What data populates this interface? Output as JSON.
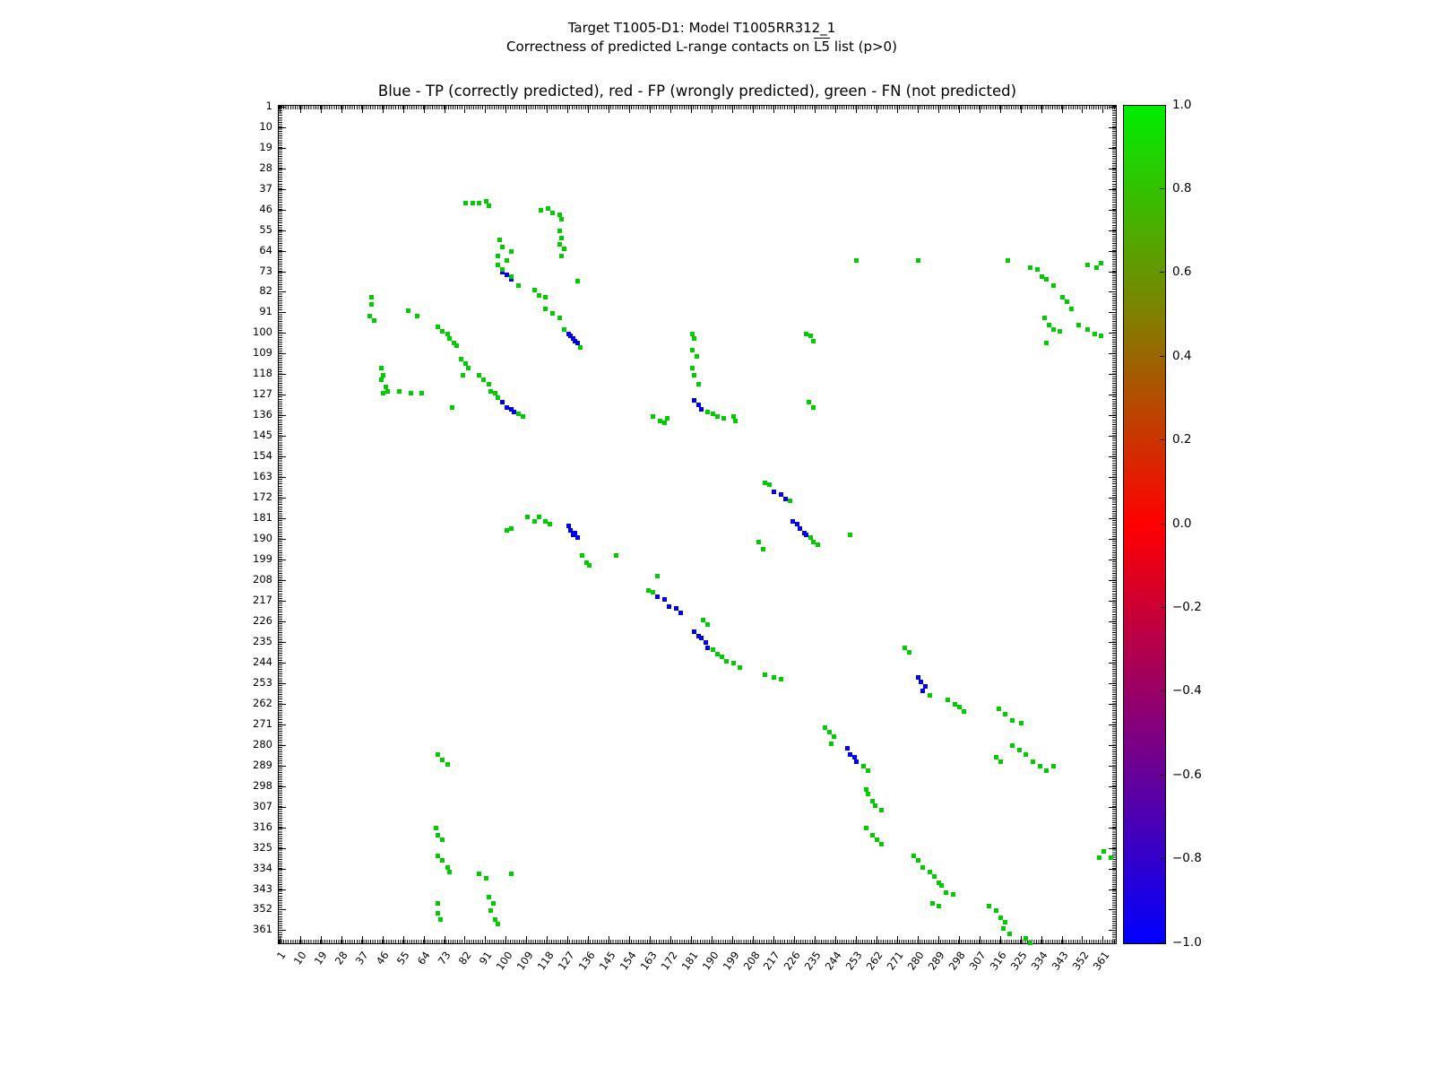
{
  "figure": {
    "suptitle_line1": "Target T1005-D1: Model T1005RR312_1",
    "suptitle_line2_prefix": "Correctness of predicted L-range contacts on ",
    "suptitle_line2_overline": "L5",
    "suptitle_line2_suffix": " list (p>0)",
    "axes_title": "Blue - TP (correctly predicted), red - FP (wrongly predicted), green - FN (not predicted)"
  },
  "chart_data": {
    "type": "scatter",
    "title": "Blue - TP (correctly predicted), red - FP (wrongly predicted), green - FN (not predicted)",
    "suptitle": "Target T1005-D1: Model T1005RR312_1",
    "subtitle": "Correctness of predicted L-range contacts on L5 list (p>0)",
    "xlabel": "",
    "ylabel": "",
    "axis_min": 1,
    "axis_max": 366,
    "y_inverted": true,
    "grid": false,
    "ticks": [
      1,
      10,
      19,
      28,
      37,
      46,
      55,
      64,
      73,
      82,
      91,
      100,
      109,
      118,
      127,
      136,
      145,
      154,
      163,
      172,
      181,
      190,
      199,
      208,
      217,
      226,
      235,
      244,
      253,
      262,
      271,
      280,
      289,
      298,
      307,
      316,
      325,
      334,
      343,
      352,
      361
    ],
    "colorbar": {
      "min": -1.0,
      "max": 1.0,
      "labels": [
        "1.0",
        "0.8",
        "0.6",
        "0.4",
        "0.2",
        "0.0",
        "−0.2",
        "−0.4",
        "−0.6",
        "−0.8",
        "−1.0"
      ],
      "color_top": "#00ee00",
      "color_mid": "#ff0000",
      "color_bottom": "#0000ff",
      "colormap": "blue-red-green (brg)"
    },
    "series": [
      {
        "name": "TP (correctly predicted)",
        "color": "#0000ee",
        "points": [
          [
            98,
            73
          ],
          [
            100,
            74
          ],
          [
            102,
            76
          ],
          [
            127,
            100
          ],
          [
            128,
            101
          ],
          [
            129,
            102
          ],
          [
            130,
            103
          ],
          [
            131,
            104
          ],
          [
            98,
            130
          ],
          [
            100,
            132
          ],
          [
            102,
            133
          ],
          [
            103,
            134
          ],
          [
            182,
            129
          ],
          [
            184,
            131
          ],
          [
            185,
            133
          ],
          [
            217,
            169
          ],
          [
            220,
            170
          ],
          [
            222,
            172
          ],
          [
            225,
            182
          ],
          [
            227,
            183
          ],
          [
            228,
            185
          ],
          [
            230,
            187
          ],
          [
            231,
            188
          ],
          [
            127,
            184
          ],
          [
            128,
            186
          ],
          [
            129,
            188
          ],
          [
            130,
            187
          ],
          [
            131,
            189
          ],
          [
            166,
            215
          ],
          [
            169,
            216
          ],
          [
            171,
            219
          ],
          [
            174,
            220
          ],
          [
            176,
            222
          ],
          [
            182,
            230
          ],
          [
            184,
            232
          ],
          [
            185,
            233
          ],
          [
            187,
            235
          ],
          [
            188,
            237
          ],
          [
            280,
            250
          ],
          [
            281,
            252
          ],
          [
            282,
            256
          ],
          [
            283,
            254
          ],
          [
            249,
            281
          ],
          [
            250,
            284
          ],
          [
            252,
            285
          ],
          [
            253,
            287
          ]
        ]
      },
      {
        "name": "FP (wrongly predicted)",
        "color": "#ee0000",
        "points": []
      },
      {
        "name": "FN (not predicted)",
        "color": "#00cc00",
        "points": [
          [
            82,
            43
          ],
          [
            85,
            43
          ],
          [
            88,
            43
          ],
          [
            91,
            42
          ],
          [
            92,
            44
          ],
          [
            115,
            46
          ],
          [
            118,
            45
          ],
          [
            120,
            47
          ],
          [
            123,
            48
          ],
          [
            124,
            50
          ],
          [
            123,
            55
          ],
          [
            124,
            58
          ],
          [
            123,
            61
          ],
          [
            125,
            63
          ],
          [
            124,
            66
          ],
          [
            97,
            59
          ],
          [
            98,
            62
          ],
          [
            102,
            64
          ],
          [
            96,
            66
          ],
          [
            100,
            68
          ],
          [
            131,
            77
          ],
          [
            96,
            70
          ],
          [
            98,
            72
          ],
          [
            102,
            75
          ],
          [
            105,
            79
          ],
          [
            112,
            81
          ],
          [
            114,
            83
          ],
          [
            117,
            84
          ],
          [
            41,
            84
          ],
          [
            41,
            87
          ],
          [
            40,
            92
          ],
          [
            42,
            94
          ],
          [
            57,
            90
          ],
          [
            61,
            92
          ],
          [
            70,
            97
          ],
          [
            72,
            99
          ],
          [
            74,
            100
          ],
          [
            75,
            102
          ],
          [
            77,
            104
          ],
          [
            78,
            105
          ],
          [
            117,
            89
          ],
          [
            120,
            91
          ],
          [
            123,
            93
          ],
          [
            125,
            98
          ],
          [
            132,
            106
          ],
          [
            80,
            111
          ],
          [
            82,
            113
          ],
          [
            83,
            115
          ],
          [
            81,
            118
          ],
          [
            45,
            115
          ],
          [
            46,
            118
          ],
          [
            45,
            120
          ],
          [
            47,
            123
          ],
          [
            46,
            126
          ],
          [
            48,
            125
          ],
          [
            53,
            125
          ],
          [
            58,
            126
          ],
          [
            63,
            126
          ],
          [
            88,
            118
          ],
          [
            90,
            120
          ],
          [
            92,
            122
          ],
          [
            93,
            125
          ],
          [
            95,
            126
          ],
          [
            96,
            128
          ],
          [
            105,
            135
          ],
          [
            107,
            136
          ],
          [
            76,
            132
          ],
          [
            164,
            136
          ],
          [
            167,
            138
          ],
          [
            169,
            139
          ],
          [
            170,
            137
          ],
          [
            188,
            134
          ],
          [
            190,
            135
          ],
          [
            192,
            136
          ],
          [
            195,
            137
          ],
          [
            199,
            136
          ],
          [
            200,
            138
          ],
          [
            181,
            100
          ],
          [
            182,
            102
          ],
          [
            181,
            107
          ],
          [
            183,
            110
          ],
          [
            181,
            115
          ],
          [
            182,
            118
          ],
          [
            184,
            122
          ],
          [
            231,
            100
          ],
          [
            233,
            101
          ],
          [
            234,
            103
          ],
          [
            232,
            130
          ],
          [
            234,
            132
          ],
          [
            213,
            165
          ],
          [
            215,
            166
          ],
          [
            224,
            173
          ],
          [
            233,
            189
          ],
          [
            234,
            191
          ],
          [
            236,
            192
          ],
          [
            210,
            191
          ],
          [
            212,
            194
          ],
          [
            250,
            188
          ],
          [
            100,
            186
          ],
          [
            102,
            185
          ],
          [
            109,
            180
          ],
          [
            112,
            182
          ],
          [
            114,
            180
          ],
          [
            117,
            182
          ],
          [
            119,
            183
          ],
          [
            133,
            197
          ],
          [
            135,
            200
          ],
          [
            136,
            201
          ],
          [
            148,
            197
          ],
          [
            166,
            206
          ],
          [
            162,
            212
          ],
          [
            164,
            213
          ],
          [
            186,
            225
          ],
          [
            188,
            227
          ],
          [
            190,
            238
          ],
          [
            192,
            240
          ],
          [
            194,
            241
          ],
          [
            196,
            243
          ],
          [
            199,
            244
          ],
          [
            202,
            246
          ],
          [
            213,
            249
          ],
          [
            217,
            250
          ],
          [
            220,
            251
          ],
          [
            285,
            258
          ],
          [
            274,
            237
          ],
          [
            276,
            239
          ],
          [
            293,
            260
          ],
          [
            296,
            262
          ],
          [
            298,
            263
          ],
          [
            300,
            265
          ],
          [
            315,
            264
          ],
          [
            318,
            266
          ],
          [
            321,
            269
          ],
          [
            325,
            270
          ],
          [
            239,
            272
          ],
          [
            241,
            274
          ],
          [
            243,
            276
          ],
          [
            242,
            279
          ],
          [
            256,
            289
          ],
          [
            258,
            291
          ],
          [
            321,
            280
          ],
          [
            324,
            282
          ],
          [
            327,
            284
          ],
          [
            330,
            287
          ],
          [
            333,
            289
          ],
          [
            336,
            291
          ],
          [
            339,
            289
          ],
          [
            314,
            285
          ],
          [
            316,
            287
          ],
          [
            257,
            299
          ],
          [
            258,
            301
          ],
          [
            260,
            304
          ],
          [
            261,
            306
          ],
          [
            264,
            308
          ],
          [
            257,
            316
          ],
          [
            260,
            319
          ],
          [
            262,
            321
          ],
          [
            264,
            323
          ],
          [
            278,
            328
          ],
          [
            280,
            330
          ],
          [
            282,
            333
          ],
          [
            285,
            335
          ],
          [
            287,
            337
          ],
          [
            289,
            340
          ],
          [
            290,
            341
          ],
          [
            292,
            344
          ],
          [
            295,
            345
          ],
          [
            286,
            349
          ],
          [
            289,
            350
          ],
          [
            311,
            350
          ],
          [
            314,
            352
          ],
          [
            316,
            355
          ],
          [
            318,
            357
          ],
          [
            317,
            360
          ],
          [
            320,
            362
          ],
          [
            327,
            364
          ],
          [
            329,
            366
          ],
          [
            69,
            316
          ],
          [
            70,
            319
          ],
          [
            72,
            321
          ],
          [
            70,
            328
          ],
          [
            72,
            330
          ],
          [
            74,
            333
          ],
          [
            75,
            335
          ],
          [
            88,
            336
          ],
          [
            91,
            338
          ],
          [
            102,
            336
          ],
          [
            92,
            346
          ],
          [
            94,
            349
          ],
          [
            93,
            352
          ],
          [
            95,
            356
          ],
          [
            96,
            358
          ],
          [
            70,
            349
          ],
          [
            70,
            353
          ],
          [
            71,
            356
          ],
          [
            329,
            71
          ],
          [
            332,
            72
          ],
          [
            334,
            75
          ],
          [
            336,
            76
          ],
          [
            339,
            79
          ],
          [
            343,
            84
          ],
          [
            345,
            86
          ],
          [
            347,
            89
          ],
          [
            354,
            70
          ],
          [
            358,
            71
          ],
          [
            360,
            69
          ],
          [
            335,
            93
          ],
          [
            337,
            96
          ],
          [
            339,
            98
          ],
          [
            342,
            99
          ],
          [
            350,
            96
          ],
          [
            354,
            98
          ],
          [
            357,
            100
          ],
          [
            360,
            101
          ],
          [
            280,
            68
          ],
          [
            253,
            68
          ],
          [
            319,
            68
          ],
          [
            336,
            104
          ],
          [
            361,
            326
          ],
          [
            364,
            329
          ],
          [
            359,
            329
          ],
          [
            70,
            284
          ],
          [
            72,
            286
          ],
          [
            74,
            288
          ]
        ]
      }
    ]
  }
}
